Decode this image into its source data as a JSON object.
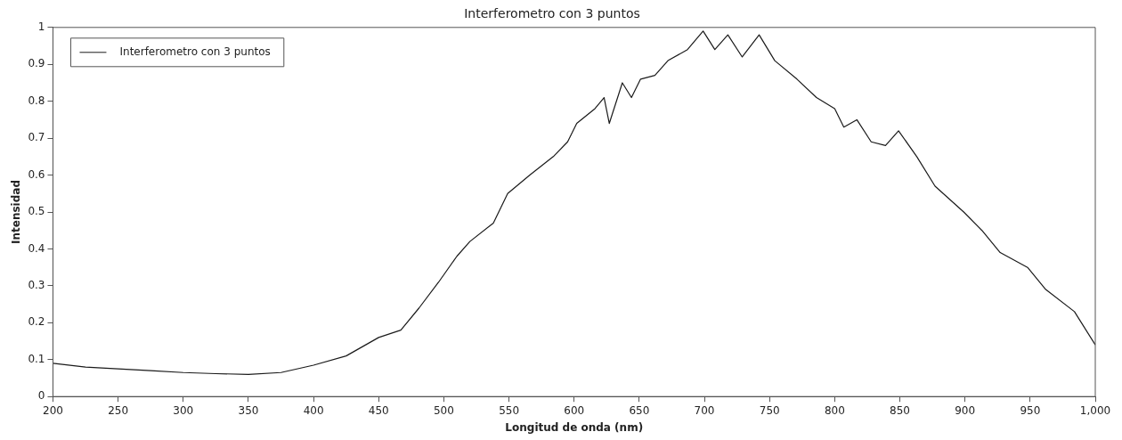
{
  "chart_data": {
    "type": "line",
    "title": "Interferometro con 3 puntos",
    "xlabel": "Longitud de onda (nm)",
    "ylabel": "Intensidad",
    "xlim": [
      200,
      1000
    ],
    "xticks": [
      200,
      250,
      300,
      350,
      400,
      450,
      500,
      550,
      600,
      650,
      700,
      750,
      800,
      850,
      900,
      950,
      {
        "value": 1000,
        "label": "1,000"
      }
    ],
    "ylim": [
      0,
      1
    ],
    "yticks": [
      0,
      0.1,
      0.2,
      0.3,
      0.4,
      0.5,
      0.6,
      0.7,
      0.8,
      0.9,
      1
    ],
    "grid": false,
    "legend": "top left",
    "marker": "none",
    "line_style": "solid",
    "series": [
      {
        "name": "Interferometro con 3 puntos",
        "color": "#1a1a1a",
        "x": [
          200,
          225,
          250,
          275,
          300,
          325,
          350,
          375,
          400,
          425,
          450,
          467,
          481,
          496,
          510,
          520,
          538,
          549,
          566,
          584,
          595,
          602,
          616,
          623,
          627,
          637,
          644,
          651,
          662,
          672,
          687,
          699,
          708,
          718,
          729,
          742,
          754,
          771,
          786,
          800,
          807,
          817,
          828,
          839,
          849,
          863,
          877,
          899,
          913,
          927,
          948,
          962,
          984,
          1000
        ],
        "values": [
          0.09,
          0.08,
          0.075,
          0.07,
          0.065,
          0.062,
          0.06,
          0.065,
          0.085,
          0.11,
          0.16,
          0.18,
          0.24,
          0.31,
          0.38,
          0.42,
          0.47,
          0.55,
          0.6,
          0.65,
          0.69,
          0.74,
          0.78,
          0.81,
          0.74,
          0.85,
          0.81,
          0.86,
          0.87,
          0.91,
          0.94,
          0.99,
          0.94,
          0.98,
          0.92,
          0.98,
          0.91,
          0.86,
          0.81,
          0.78,
          0.73,
          0.75,
          0.69,
          0.68,
          0.72,
          0.65,
          0.57,
          0.5,
          0.45,
          0.39,
          0.35,
          0.29,
          0.23,
          0.14
        ]
      }
    ]
  }
}
